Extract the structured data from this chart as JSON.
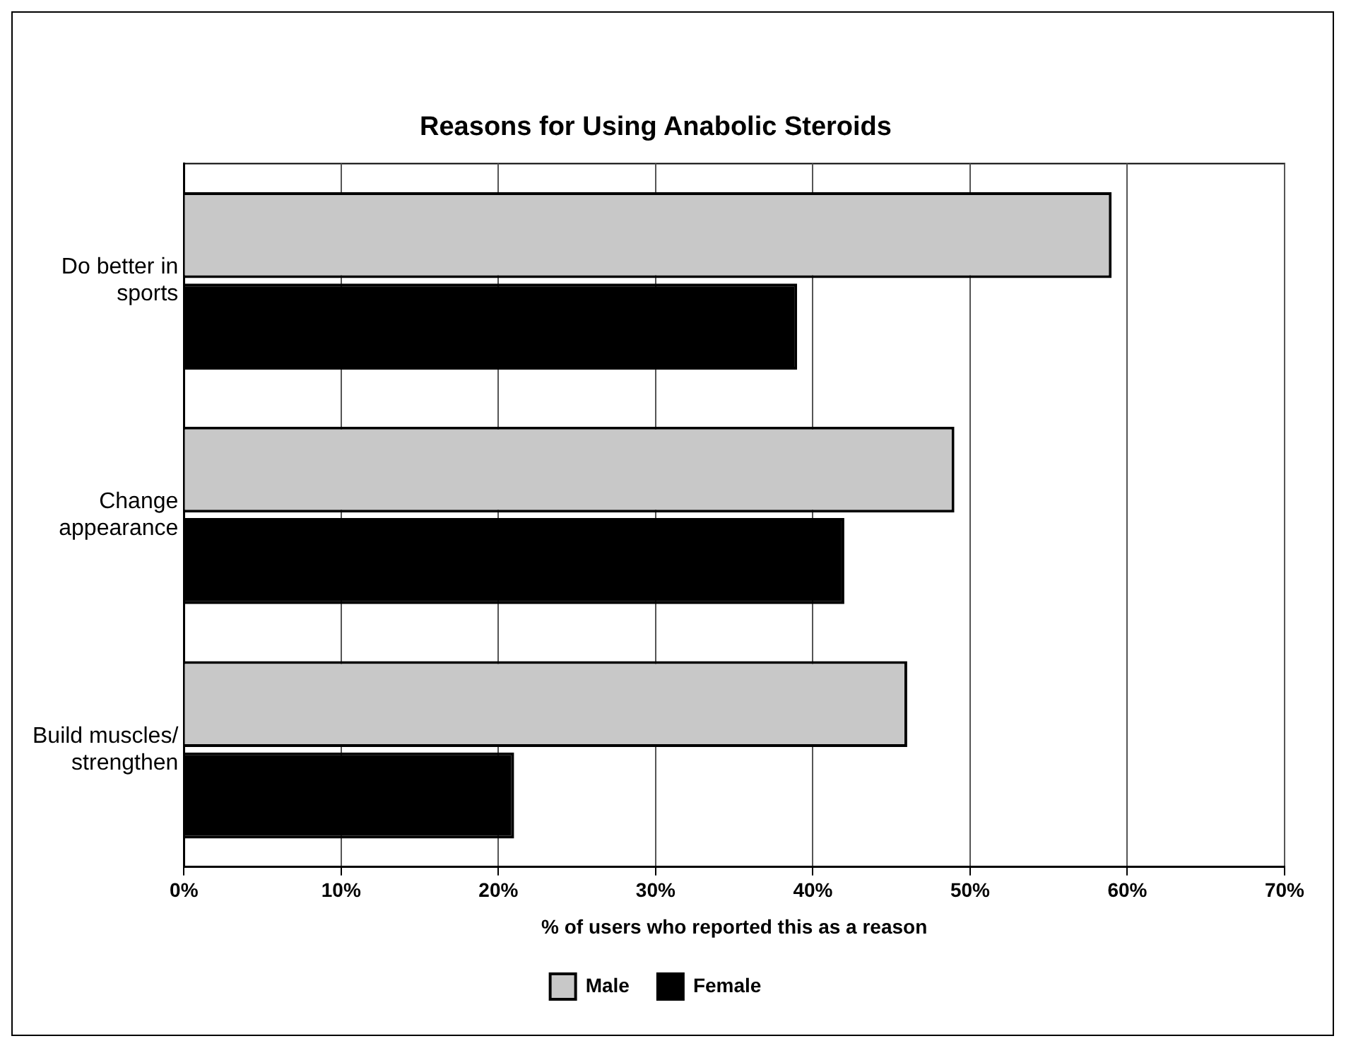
{
  "chart_data": {
    "type": "bar",
    "orientation": "horizontal",
    "title": "Reasons for Using Anabolic Steroids",
    "xlabel": "% of users who reported this as a reason",
    "categories": [
      "Do better in sports",
      "Change appearance",
      "Build muscles/ strengthen"
    ],
    "series": [
      {
        "name": "Male",
        "color": "#c8c8c8",
        "values": [
          59,
          49,
          46
        ]
      },
      {
        "name": "Female",
        "color": "#000000",
        "values": [
          39,
          42,
          21
        ]
      }
    ],
    "xlim": [
      0,
      70
    ],
    "xticks": [
      {
        "value": 0,
        "label": "0%"
      },
      {
        "value": 10,
        "label": "10%"
      },
      {
        "value": 20,
        "label": "20%"
      },
      {
        "value": 30,
        "label": "30%"
      },
      {
        "value": 40,
        "label": "40%"
      },
      {
        "value": 50,
        "label": "50%"
      },
      {
        "value": 60,
        "label": "60%"
      },
      {
        "value": 70,
        "label": "70%"
      }
    ],
    "grid": "x",
    "legend": "bottom"
  }
}
